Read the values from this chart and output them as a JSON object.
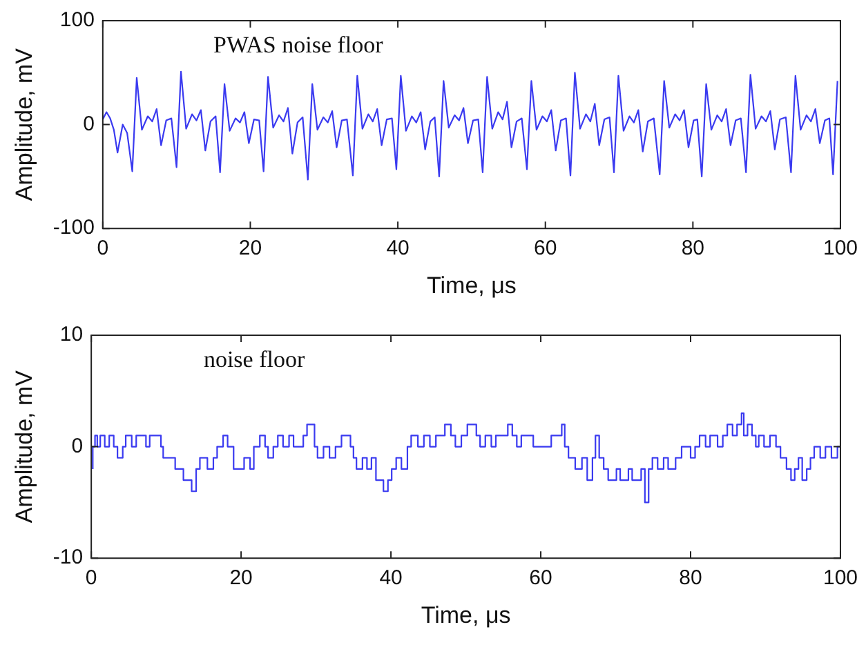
{
  "chart_data": [
    {
      "type": "line",
      "xlabel": "Time, μs",
      "ylabel": "Amplitude, mV",
      "annotations": [
        "PWAS noise floor"
      ],
      "xlim": [
        0,
        100
      ],
      "xticks": [
        0,
        20,
        40,
        60,
        80,
        100
      ],
      "ylim": [
        -100,
        100
      ],
      "yticks": [
        -100,
        0,
        100
      ],
      "grid": false,
      "legend": false,
      "marker": "none",
      "line_style": "solid",
      "series": [
        {
          "color": "#3a3af0",
          "x": [
            0,
            0.5,
            1.0,
            1.5,
            2.0,
            2.7,
            3.3,
            4.0,
            4.6,
            5.3,
            6.1,
            6.7,
            7.3,
            7.9,
            8.6,
            9.3,
            10.0,
            10.6,
            11.3,
            12.1,
            12.7,
            13.3,
            13.9,
            14.6,
            15.3,
            15.9,
            16.5,
            17.2,
            18.0,
            18.6,
            19.2,
            19.8,
            20.5,
            21.2,
            21.8,
            22.4,
            23.1,
            23.9,
            24.5,
            25.1,
            25.7,
            26.4,
            27.1,
            27.8,
            28.4,
            29.1,
            29.9,
            30.5,
            31.1,
            31.7,
            32.4,
            33.1,
            33.9,
            34.5,
            35.2,
            36.0,
            36.6,
            37.2,
            37.8,
            38.5,
            39.2,
            39.8,
            40.4,
            41.1,
            41.9,
            42.5,
            43.1,
            43.7,
            44.4,
            45.0,
            45.6,
            46.2,
            46.9,
            47.7,
            48.3,
            48.9,
            49.5,
            50.2,
            50.9,
            51.5,
            52.1,
            52.8,
            53.6,
            54.2,
            54.8,
            55.4,
            56.1,
            56.8,
            57.5,
            58.1,
            58.8,
            59.6,
            60.2,
            60.8,
            61.4,
            62.1,
            62.8,
            63.4,
            64.0,
            64.7,
            65.5,
            66.1,
            66.7,
            67.3,
            68.0,
            68.7,
            69.3,
            69.9,
            70.6,
            71.4,
            72.0,
            72.6,
            73.2,
            73.9,
            74.7,
            75.5,
            76.1,
            76.8,
            77.6,
            78.2,
            78.8,
            79.4,
            80.1,
            80.6,
            81.2,
            81.8,
            82.5,
            83.3,
            83.9,
            84.5,
            85.1,
            85.8,
            86.5,
            87.2,
            87.8,
            88.5,
            89.3,
            89.9,
            90.5,
            91.1,
            91.8,
            92.6,
            93.3,
            93.9,
            94.6,
            95.4,
            96.0,
            96.6,
            97.2,
            97.9,
            98.5,
            99.0,
            99.6
          ],
          "values": [
            5,
            12,
            6,
            -5,
            -27,
            0,
            -8,
            -45,
            45,
            -5,
            8,
            3,
            15,
            -20,
            4,
            6,
            -41,
            51,
            -4,
            10,
            4,
            14,
            -25,
            3,
            8,
            -46,
            39,
            -6,
            6,
            2,
            12,
            -18,
            5,
            4,
            -45,
            46,
            -3,
            9,
            3,
            16,
            -28,
            2,
            7,
            -53,
            39,
            -5,
            7,
            2,
            13,
            -22,
            4,
            5,
            -49,
            47,
            -4,
            10,
            3,
            15,
            -20,
            5,
            6,
            -43,
            47,
            -6,
            8,
            2,
            12,
            -24,
            3,
            7,
            -50,
            42,
            -3,
            9,
            4,
            16,
            -18,
            4,
            5,
            -46,
            46,
            -4,
            12,
            5,
            22,
            -22,
            3,
            6,
            -43,
            42,
            -5,
            8,
            3,
            14,
            -25,
            4,
            6,
            -49,
            50,
            -4,
            10,
            3,
            20,
            -20,
            5,
            7,
            -46,
            47,
            -6,
            8,
            2,
            14,
            -26,
            3,
            6,
            -48,
            42,
            -3,
            10,
            4,
            14,
            -22,
            4,
            5,
            -50,
            39,
            -5,
            9,
            3,
            15,
            -20,
            4,
            6,
            -46,
            48,
            -4,
            8,
            3,
            13,
            -24,
            5,
            7,
            -46,
            47,
            -5,
            9,
            3,
            15,
            -18,
            4,
            6,
            -48,
            42
          ]
        }
      ]
    },
    {
      "type": "step",
      "xlabel": "Time, μs",
      "ylabel": "Amplitude, mV",
      "annotations": [
        "noise floor"
      ],
      "xlim": [
        0,
        100
      ],
      "xticks": [
        0,
        20,
        40,
        60,
        80,
        100
      ],
      "ylim": [
        -10,
        10
      ],
      "yticks": [
        -10,
        0,
        10
      ],
      "grid": false,
      "legend": false,
      "marker": "none",
      "line_style": "solid",
      "series": [
        {
          "color": "#3a3af0",
          "x": [
            0.2,
            0.5,
            0.8,
            1.2,
            1.8,
            2.4,
            3.0,
            3.5,
            4.2,
            4.6,
            5.4,
            6.0,
            7.3,
            7.8,
            9.3,
            9.6,
            11.2,
            12.3,
            13.4,
            14.0,
            14.5,
            15.5,
            16.3,
            16.8,
            17.6,
            18.2,
            19.0,
            20.4,
            21.2,
            21.7,
            22.5,
            23.2,
            23.6,
            24.3,
            24.9,
            25.6,
            26.4,
            27.0,
            28.3,
            28.8,
            29.8,
            30.2,
            31.0,
            31.8,
            32.6,
            33.4,
            34.6,
            35.0,
            35.4,
            36.2,
            36.8,
            37.4,
            38.0,
            39.0,
            39.6,
            40.1,
            40.7,
            41.4,
            42.2,
            42.7,
            43.6,
            44.4,
            45.2,
            46.0,
            47.2,
            48.0,
            48.6,
            49.4,
            50.2,
            51.4,
            51.9,
            52.6,
            53.4,
            54.0,
            55.6,
            56.2,
            56.8,
            57.4,
            59.0,
            59.6,
            61.4,
            62.8,
            63.2,
            63.7,
            64.6,
            65.5,
            66.2,
            66.9,
            67.3,
            67.8,
            68.4,
            69.0,
            70.1,
            70.6,
            71.7,
            72.2,
            73.4,
            73.9,
            74.4,
            74.9,
            75.6,
            76.4,
            77.0,
            78.0,
            78.8,
            80.0,
            80.6,
            81.2,
            82.0,
            82.6,
            83.6,
            84.3,
            84.9,
            85.6,
            86.2,
            86.8,
            87.1,
            87.6,
            88.2,
            88.7,
            89.1,
            89.8,
            90.6,
            91.4,
            92.0,
            92.8,
            93.4,
            93.9,
            94.4,
            94.9,
            95.5,
            96.0,
            96.5,
            97.3,
            98.0,
            98.8,
            99.6,
            100
          ],
          "values": [
            -2,
            0,
            1,
            0,
            1,
            0,
            1,
            0,
            -1,
            0,
            1,
            0,
            1,
            0,
            1,
            0,
            -1,
            -2,
            -3,
            -4,
            -2,
            -1,
            -2,
            -1,
            0,
            1,
            0,
            -2,
            -1,
            -2,
            0,
            1,
            0,
            -1,
            0,
            1,
            0,
            1,
            0,
            1,
            2,
            0,
            -1,
            0,
            -1,
            0,
            1,
            0,
            -1,
            -2,
            -1,
            -2,
            -1,
            -3,
            -4,
            -3,
            -2,
            -1,
            -2,
            0,
            1,
            0,
            1,
            0,
            1,
            2,
            1,
            0,
            1,
            2,
            1,
            0,
            1,
            0,
            1,
            2,
            1,
            0,
            1,
            0,
            0,
            1,
            2,
            0,
            -1,
            -2,
            -1,
            -3,
            -1,
            1,
            -1,
            -2,
            -3,
            -2,
            -3,
            -2,
            -3,
            -2,
            -5,
            -2,
            -1,
            -2,
            -1,
            -2,
            -1,
            0,
            -1,
            0,
            1,
            0,
            1,
            0,
            1,
            2,
            1,
            2,
            3,
            1,
            2,
            1,
            0,
            1,
            0,
            1,
            0,
            -1,
            -2,
            -3,
            -2,
            -1,
            -3,
            -2,
            -1,
            0,
            -1,
            0,
            -1,
            0
          ]
        }
      ]
    }
  ]
}
